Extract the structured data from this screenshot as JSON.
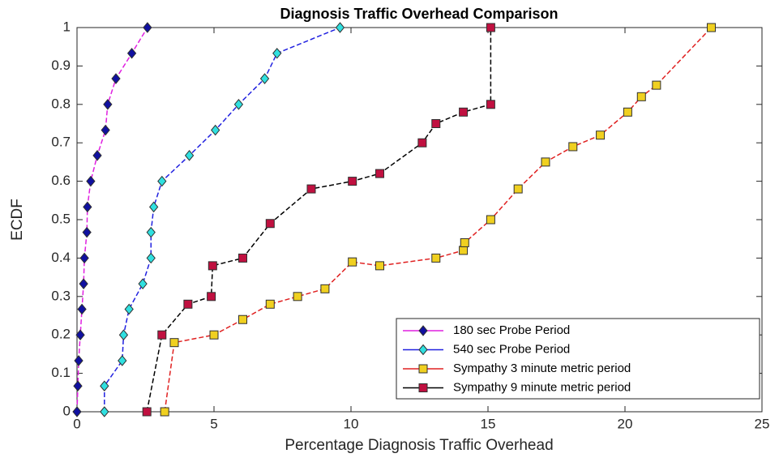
{
  "chart_data": {
    "type": "line",
    "title": "Diagnosis Traffic Overhead Comparison",
    "xlabel": "Percentage Diagnosis Traffic Overhead",
    "ylabel": "ECDF",
    "xlim": [
      0,
      25
    ],
    "xticks": [
      0,
      5,
      10,
      15,
      20,
      25
    ],
    "ylim": [
      0,
      1
    ],
    "yticks": [
      0,
      0.1,
      0.2,
      0.3,
      0.4,
      0.5,
      0.6,
      0.7,
      0.8,
      0.9,
      1
    ],
    "legend": "lower right",
    "series": [
      {
        "name": "180 sec Probe Period",
        "color": "#e020e0",
        "marker": "diamond",
        "marker_color": "#1010a0",
        "x": [
          0,
          0.03,
          0.06,
          0.12,
          0.18,
          0.24,
          0.27,
          0.36,
          0.38,
          0.5,
          0.74,
          1.04,
          1.12,
          1.42,
          2.0,
          2.57
        ],
        "values": [
          0,
          0.067,
          0.133,
          0.2,
          0.267,
          0.333,
          0.4,
          0.467,
          0.533,
          0.6,
          0.667,
          0.733,
          0.8,
          0.867,
          0.933,
          1.0
        ]
      },
      {
        "name": "540 sec Probe Period",
        "color": "#2020e0",
        "marker": "diamond",
        "marker_color": "#30e0e0",
        "x": [
          1.0,
          1.0,
          1.65,
          1.7,
          1.9,
          2.4,
          2.7,
          2.7,
          2.8,
          3.1,
          4.1,
          5.05,
          5.9,
          6.85,
          7.3,
          9.6
        ],
        "values": [
          0,
          0.067,
          0.133,
          0.2,
          0.267,
          0.333,
          0.4,
          0.467,
          0.533,
          0.6,
          0.667,
          0.733,
          0.8,
          0.867,
          0.933,
          1.0
        ]
      },
      {
        "name": "Sympathy 3 minute metric period",
        "color": "#e02020",
        "marker": "square",
        "marker_color": "#f0d020",
        "x": [
          3.2,
          3.55,
          5.0,
          6.05,
          7.05,
          8.05,
          9.05,
          10.05,
          11.05,
          13.1,
          14.1,
          14.15,
          15.1,
          16.1,
          17.1,
          18.1,
          19.1,
          20.1,
          20.6,
          21.15,
          23.15
        ],
        "values": [
          0,
          0.18,
          0.2,
          0.24,
          0.28,
          0.3,
          0.32,
          0.39,
          0.38,
          0.4,
          0.42,
          0.44,
          0.5,
          0.58,
          0.65,
          0.69,
          0.72,
          0.78,
          0.82,
          0.85,
          1.0
        ]
      },
      {
        "name": "Sympathy 9 minute metric period",
        "color": "#000000",
        "marker": "square",
        "marker_color": "#c01040",
        "x": [
          2.55,
          3.1,
          4.05,
          4.9,
          4.95,
          6.05,
          7.05,
          8.55,
          10.05,
          11.05,
          12.6,
          13.1,
          14.1,
          15.1,
          15.1
        ],
        "values": [
          0,
          0.2,
          0.28,
          0.3,
          0.38,
          0.4,
          0.49,
          0.58,
          0.6,
          0.62,
          0.7,
          0.75,
          0.78,
          0.8,
          1.0
        ]
      }
    ]
  }
}
